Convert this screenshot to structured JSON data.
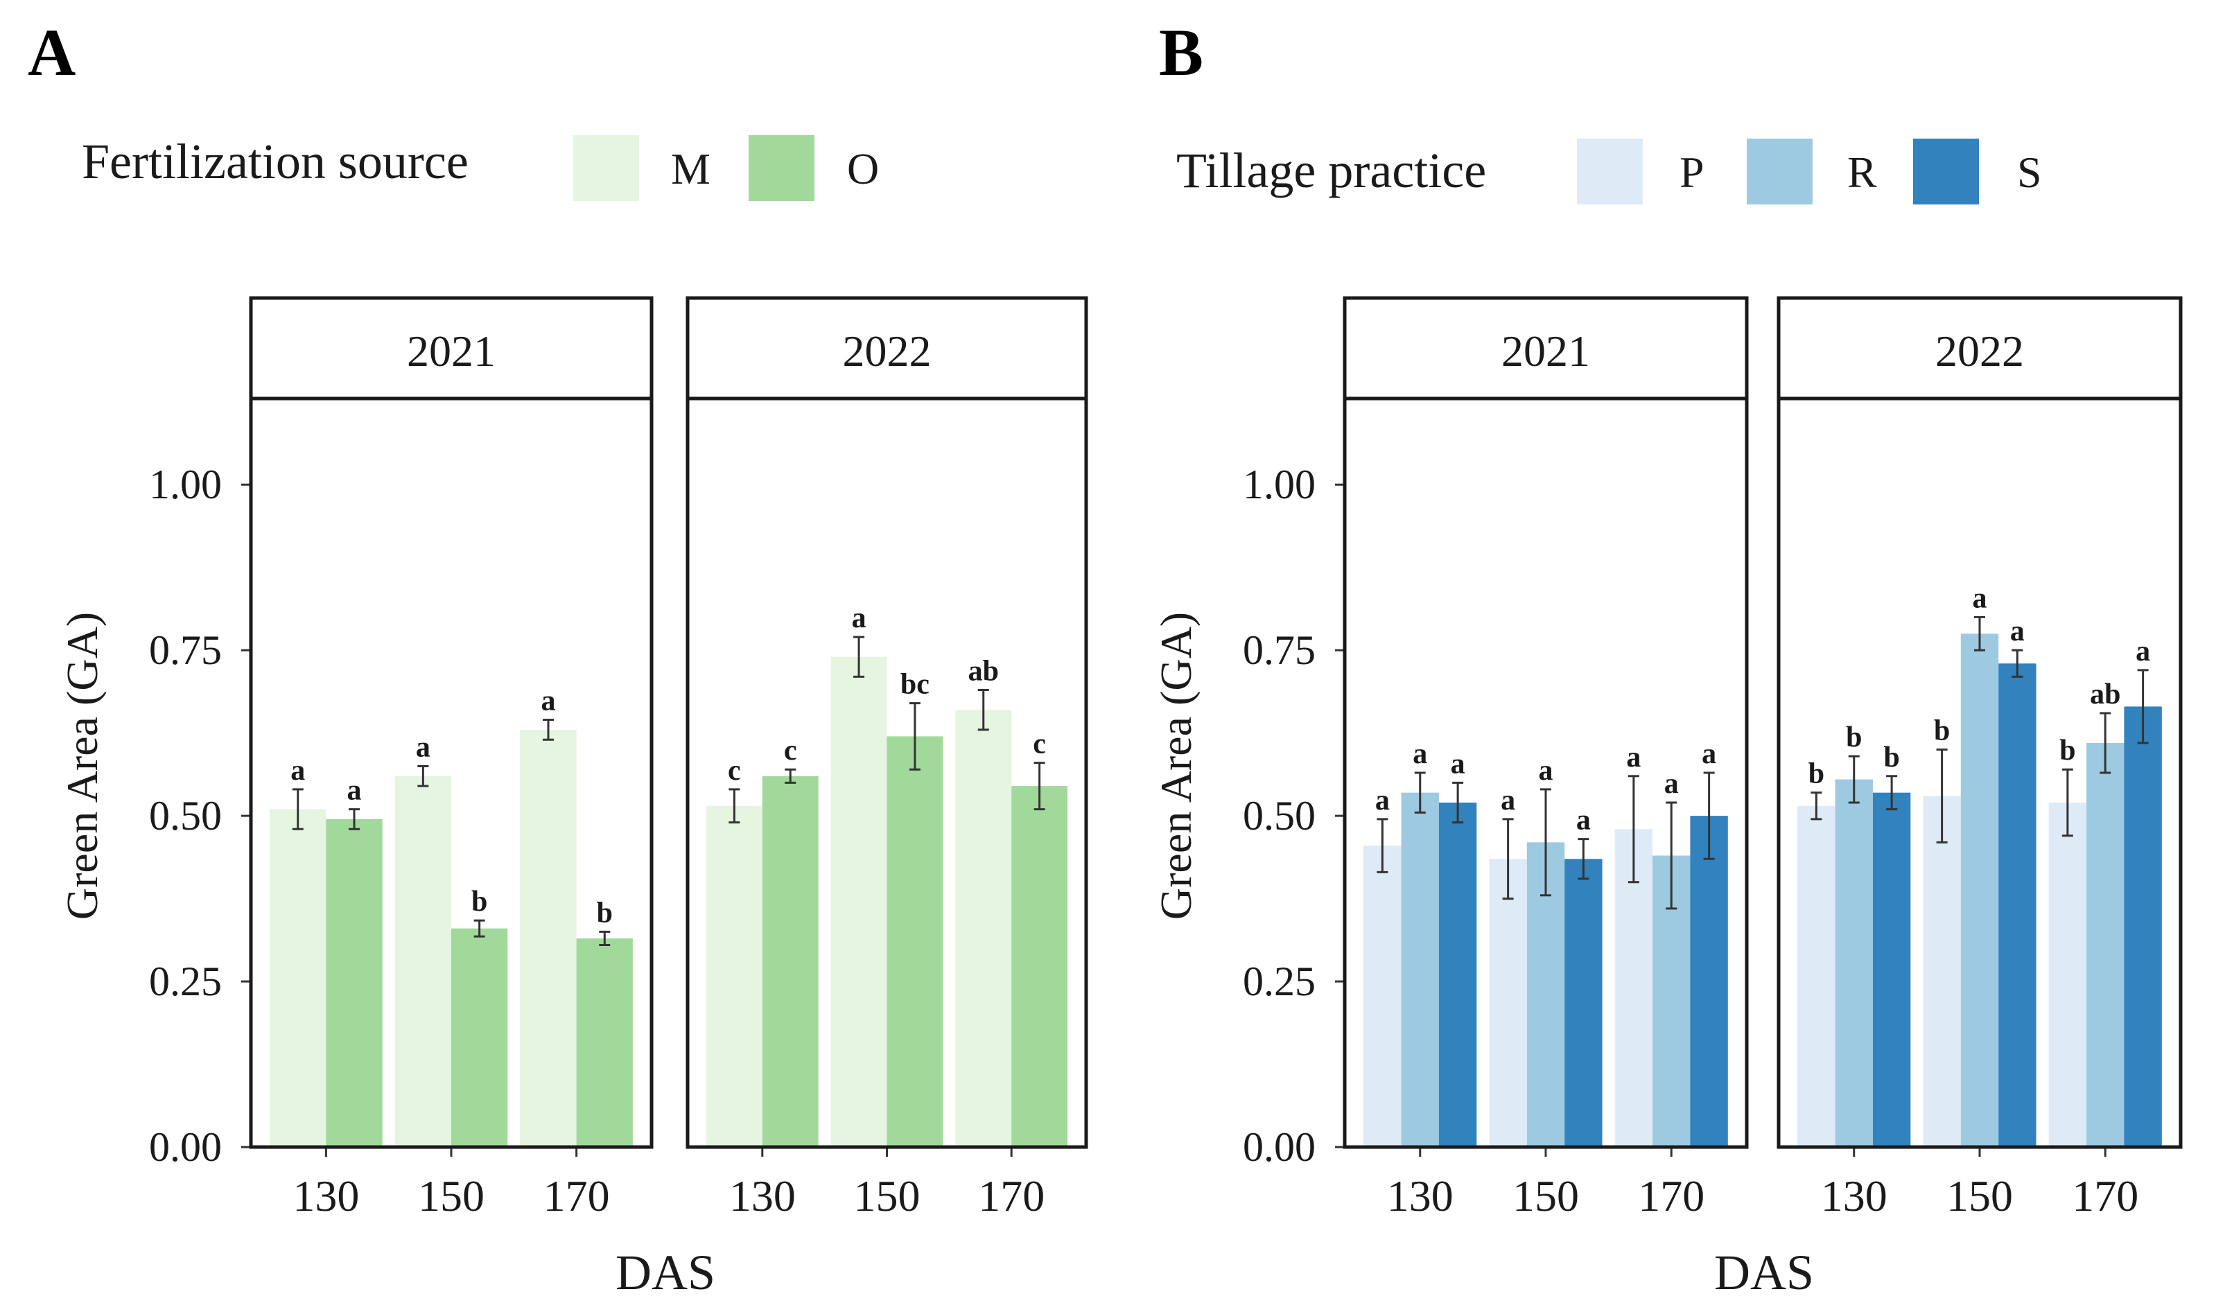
{
  "chart_data": [
    {
      "panel_label": "A",
      "type": "bar",
      "legend": {
        "title": "Fertilization source",
        "entries": [
          {
            "name": "M",
            "color": "#e5f5e0"
          },
          {
            "name": "O",
            "color": "#a1d99b"
          }
        ]
      },
      "xlabel": "DAS",
      "ylabel": "Green Area (GA)",
      "ylim": [
        0,
        1.13
      ],
      "yticks": [
        0.0,
        0.25,
        0.5,
        0.75,
        1.0
      ],
      "ytick_labels": [
        "0.00",
        "0.25",
        "0.50",
        "0.75",
        "1.00"
      ],
      "categories": [
        "130",
        "150",
        "170"
      ],
      "facets": [
        {
          "label": "2021",
          "series": [
            {
              "name": "M",
              "values": [
                0.51,
                0.56,
                0.63
              ],
              "errors": [
                0.03,
                0.015,
                0.015
              ],
              "letters": [
                "a",
                "a",
                "a"
              ]
            },
            {
              "name": "O",
              "values": [
                0.495,
                0.33,
                0.315
              ],
              "errors": [
                0.015,
                0.012,
                0.01
              ],
              "letters": [
                "a",
                "b",
                "b"
              ]
            }
          ]
        },
        {
          "label": "2022",
          "series": [
            {
              "name": "M",
              "values": [
                0.515,
                0.74,
                0.66
              ],
              "errors": [
                0.025,
                0.03,
                0.03
              ],
              "letters": [
                "c",
                "a",
                "ab"
              ]
            },
            {
              "name": "O",
              "values": [
                0.56,
                0.62,
                0.545
              ],
              "errors": [
                0.01,
                0.05,
                0.035
              ],
              "letters": [
                "c",
                "bc",
                "c"
              ]
            }
          ]
        }
      ]
    },
    {
      "panel_label": "B",
      "type": "bar",
      "legend": {
        "title": "Tillage practice",
        "entries": [
          {
            "name": "P",
            "color": "#deebf7"
          },
          {
            "name": "R",
            "color": "#9ecae1"
          },
          {
            "name": "S",
            "color": "#3182bd"
          }
        ]
      },
      "xlabel": "DAS",
      "ylabel": "Green Area (GA)",
      "ylim": [
        0,
        1.13
      ],
      "yticks": [
        0.0,
        0.25,
        0.5,
        0.75,
        1.0
      ],
      "ytick_labels": [
        "0.00",
        "0.25",
        "0.50",
        "0.75",
        "1.00"
      ],
      "categories": [
        "130",
        "150",
        "170"
      ],
      "facets": [
        {
          "label": "2021",
          "series": [
            {
              "name": "P",
              "values": [
                0.455,
                0.435,
                0.48
              ],
              "errors": [
                0.04,
                0.06,
                0.08
              ],
              "letters": [
                "a",
                "a",
                "a"
              ]
            },
            {
              "name": "R",
              "values": [
                0.535,
                0.46,
                0.44
              ],
              "errors": [
                0.03,
                0.08,
                0.08
              ],
              "letters": [
                "a",
                "a",
                "a"
              ]
            },
            {
              "name": "S",
              "values": [
                0.52,
                0.435,
                0.5
              ],
              "errors": [
                0.03,
                0.03,
                0.065
              ],
              "letters": [
                "a",
                "a",
                "a"
              ]
            }
          ]
        },
        {
          "label": "2022",
          "series": [
            {
              "name": "P",
              "values": [
                0.515,
                0.53,
                0.52
              ],
              "errors": [
                0.02,
                0.07,
                0.05
              ],
              "letters": [
                "b",
                "b",
                "b"
              ]
            },
            {
              "name": "R",
              "values": [
                0.555,
                0.775,
                0.61
              ],
              "errors": [
                0.035,
                0.025,
                0.045
              ],
              "letters": [
                "b",
                "a",
                "ab"
              ]
            },
            {
              "name": "S",
              "values": [
                0.535,
                0.73,
                0.665
              ],
              "errors": [
                0.025,
                0.02,
                0.055
              ],
              "letters": [
                "b",
                "a",
                "a"
              ]
            }
          ]
        }
      ]
    }
  ]
}
